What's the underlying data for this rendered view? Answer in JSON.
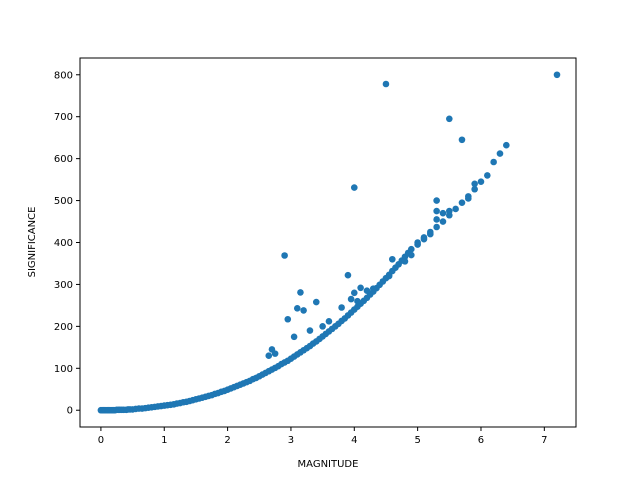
{
  "chart_data": {
    "type": "scatter",
    "title": "",
    "xlabel": "MAGNITUDE",
    "ylabel": "SIGNIFICANCE",
    "xlim": [
      -0.33,
      7.5
    ],
    "ylim": [
      -40,
      840
    ],
    "xticks": [
      0,
      1,
      2,
      3,
      4,
      5,
      6,
      7
    ],
    "yticks": [
      0,
      100,
      200,
      300,
      400,
      500,
      600,
      700,
      800
    ],
    "grid": false,
    "legend": "none",
    "point_color": "#1f77b4",
    "series": [
      {
        "values": [
          [
            0.0,
            0
          ],
          [
            0.02,
            0
          ],
          [
            0.04,
            0
          ],
          [
            0.06,
            0
          ],
          [
            0.08,
            0
          ],
          [
            0.1,
            0
          ],
          [
            0.12,
            0
          ],
          [
            0.14,
            0
          ],
          [
            0.16,
            0
          ],
          [
            0.18,
            0
          ],
          [
            0.2,
            0
          ],
          [
            0.22,
            0
          ],
          [
            0.25,
            1
          ],
          [
            0.28,
            1
          ],
          [
            0.3,
            1
          ],
          [
            0.33,
            1
          ],
          [
            0.36,
            1
          ],
          [
            0.4,
            1
          ],
          [
            0.43,
            2
          ],
          [
            0.46,
            2
          ],
          [
            0.5,
            2
          ],
          [
            0.55,
            3
          ],
          [
            0.6,
            4
          ],
          [
            0.65,
            4
          ],
          [
            0.7,
            5
          ],
          [
            0.75,
            6
          ],
          [
            0.8,
            7
          ],
          [
            0.85,
            8
          ],
          [
            0.9,
            9
          ],
          [
            0.95,
            10
          ],
          [
            1.0,
            11
          ],
          [
            1.05,
            12
          ],
          [
            1.1,
            13
          ],
          [
            1.15,
            14
          ],
          [
            1.2,
            16
          ],
          [
            1.25,
            17
          ],
          [
            1.3,
            19
          ],
          [
            1.35,
            20
          ],
          [
            1.4,
            22
          ],
          [
            1.45,
            24
          ],
          [
            1.5,
            26
          ],
          [
            1.55,
            28
          ],
          [
            1.6,
            30
          ],
          [
            1.65,
            32
          ],
          [
            1.7,
            34
          ],
          [
            1.75,
            36
          ],
          [
            1.8,
            39
          ],
          [
            1.85,
            41
          ],
          [
            1.9,
            44
          ],
          [
            1.95,
            46
          ],
          [
            2.0,
            49
          ],
          [
            2.05,
            52
          ],
          [
            2.1,
            55
          ],
          [
            2.15,
            58
          ],
          [
            2.2,
            61
          ],
          [
            2.25,
            64
          ],
          [
            2.3,
            67
          ],
          [
            2.35,
            70
          ],
          [
            2.4,
            74
          ],
          [
            2.45,
            77
          ],
          [
            2.5,
            81
          ],
          [
            2.55,
            85
          ],
          [
            2.6,
            89
          ],
          [
            2.65,
            93
          ],
          [
            2.7,
            97
          ],
          [
            2.75,
            101
          ],
          [
            2.8,
            105
          ],
          [
            2.85,
            110
          ],
          [
            2.9,
            114
          ],
          [
            2.95,
            118
          ],
          [
            3.0,
            123
          ],
          [
            3.05,
            128
          ],
          [
            3.1,
            133
          ],
          [
            3.15,
            138
          ],
          [
            3.2,
            143
          ],
          [
            3.25,
            148
          ],
          [
            3.3,
            153
          ],
          [
            3.35,
            159
          ],
          [
            3.4,
            164
          ],
          [
            3.45,
            170
          ],
          [
            3.5,
            176
          ],
          [
            3.55,
            182
          ],
          [
            3.6,
            188
          ],
          [
            3.65,
            194
          ],
          [
            3.7,
            200
          ],
          [
            3.75,
            206
          ],
          [
            3.8,
            213
          ],
          [
            3.85,
            219
          ],
          [
            3.9,
            226
          ],
          [
            3.95,
            233
          ],
          [
            4.0,
            240
          ],
          [
            4.05,
            247
          ],
          [
            4.1,
            254
          ],
          [
            4.15,
            261
          ],
          [
            4.2,
            268
          ],
          [
            4.25,
            276
          ],
          [
            4.3,
            283
          ],
          [
            4.35,
            291
          ],
          [
            4.4,
            299
          ],
          [
            4.45,
            307
          ],
          [
            4.5,
            315
          ],
          [
            4.55,
            323
          ],
          [
            4.6,
            332
          ],
          [
            4.65,
            340
          ],
          [
            4.7,
            348
          ],
          [
            4.75,
            357
          ],
          [
            4.8,
            366
          ],
          [
            4.85,
            375
          ],
          [
            4.9,
            384
          ],
          [
            5.0,
            400
          ],
          [
            5.1,
            412
          ],
          [
            5.2,
            425
          ],
          [
            5.3,
            437
          ],
          [
            5.4,
            450
          ],
          [
            5.5,
            465
          ],
          [
            5.6,
            480
          ],
          [
            5.7,
            495
          ],
          [
            5.8,
            510
          ],
          [
            5.9,
            527
          ],
          [
            6.0,
            545
          ],
          [
            6.1,
            560
          ],
          [
            6.2,
            592
          ],
          [
            6.3,
            612
          ],
          [
            6.4,
            632
          ],
          [
            2.65,
            130
          ],
          [
            2.7,
            145
          ],
          [
            2.75,
            135
          ],
          [
            2.9,
            369
          ],
          [
            2.95,
            217
          ],
          [
            3.05,
            175
          ],
          [
            3.1,
            243
          ],
          [
            3.15,
            281
          ],
          [
            3.2,
            238
          ],
          [
            3.3,
            190
          ],
          [
            3.4,
            258
          ],
          [
            3.5,
            200
          ],
          [
            3.6,
            212
          ],
          [
            3.8,
            245
          ],
          [
            3.9,
            322
          ],
          [
            3.95,
            265
          ],
          [
            4.0,
            531
          ],
          [
            4.0,
            280
          ],
          [
            4.05,
            260
          ],
          [
            4.1,
            292
          ],
          [
            4.2,
            285
          ],
          [
            4.3,
            290
          ],
          [
            4.5,
            778
          ],
          [
            4.55,
            320
          ],
          [
            4.6,
            360
          ],
          [
            4.8,
            355
          ],
          [
            4.9,
            370
          ],
          [
            5.0,
            395
          ],
          [
            5.1,
            408
          ],
          [
            5.2,
            420
          ],
          [
            5.3,
            500
          ],
          [
            5.3,
            475
          ],
          [
            5.3,
            455
          ],
          [
            5.4,
            470
          ],
          [
            5.5,
            695
          ],
          [
            5.5,
            475
          ],
          [
            5.7,
            645
          ],
          [
            5.8,
            505
          ],
          [
            5.9,
            540
          ],
          [
            7.2,
            800
          ]
        ]
      }
    ]
  }
}
